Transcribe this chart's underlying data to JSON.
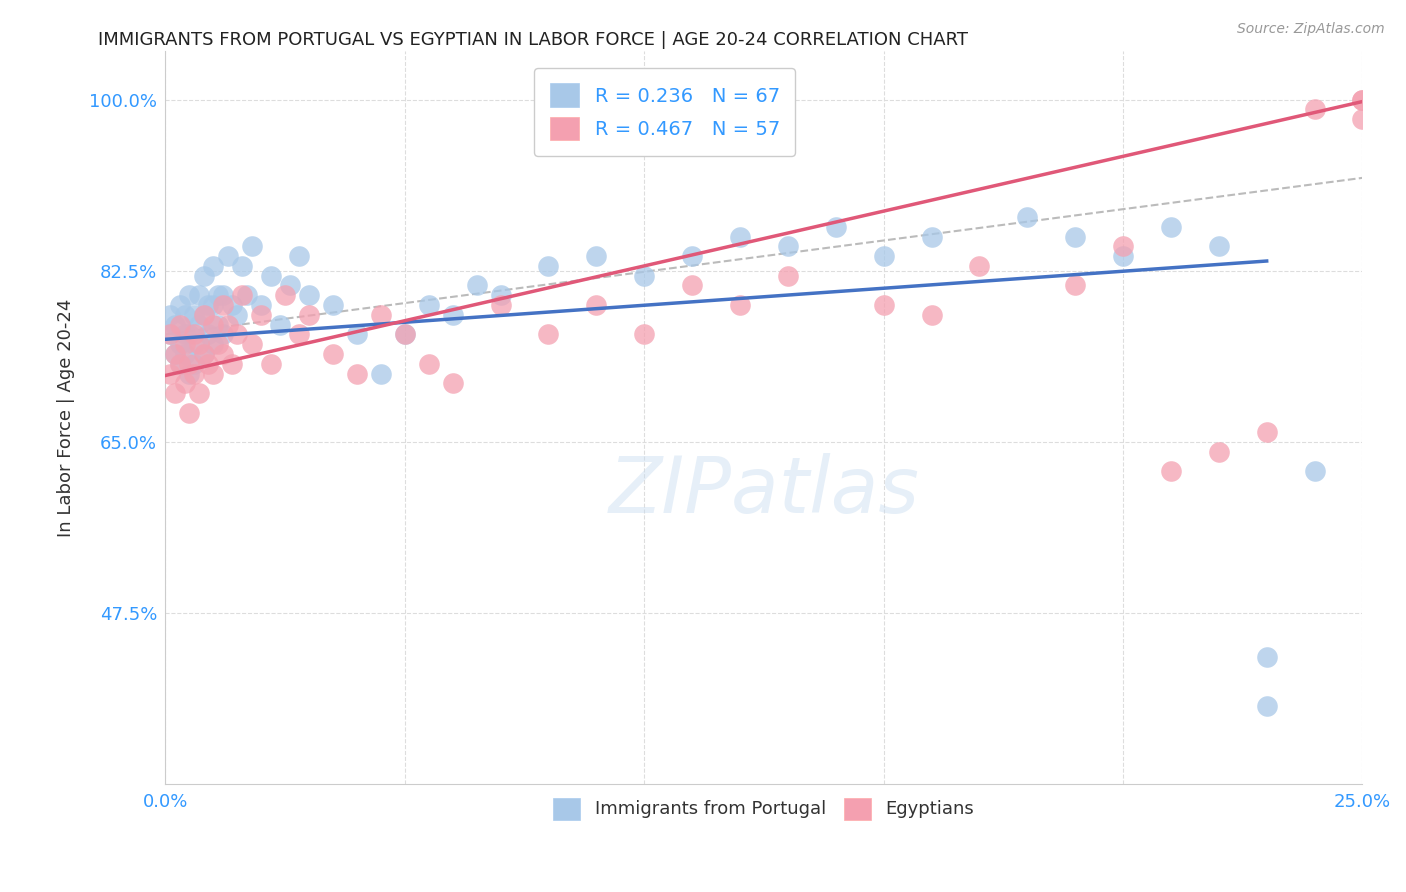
{
  "title": "IMMIGRANTS FROM PORTUGAL VS EGYPTIAN IN LABOR FORCE | AGE 20-24 CORRELATION CHART",
  "source": "Source: ZipAtlas.com",
  "ylabel": "In Labor Force | Age 20-24",
  "xlim": [
    0.0,
    0.25
  ],
  "ylim": [
    0.3,
    1.05
  ],
  "yticks": [
    0.475,
    0.65,
    0.825,
    1.0
  ],
  "yticklabels": [
    "47.5%",
    "65.0%",
    "82.5%",
    "100.0%"
  ],
  "xtick_show": [
    "0.0%",
    "25.0%"
  ],
  "legend_labels": [
    "Immigrants from Portugal",
    "Egyptians"
  ],
  "R_portugal": 0.236,
  "N_portugal": 67,
  "R_egypt": 0.467,
  "N_egypt": 57,
  "color_portugal": "#A8C8E8",
  "color_egypt": "#F4A0B0",
  "line_color_portugal": "#4472C4",
  "line_color_egypt": "#E05878",
  "dashed_line_color": "#BBBBBB",
  "background_color": "#FFFFFF",
  "grid_color": "#DDDDDD",
  "title_color": "#222222",
  "axis_label_color": "#333333",
  "tick_color": "#3399FF",
  "legend_text_color": "#3399FF",
  "portugal_x": [
    0.001,
    0.001,
    0.002,
    0.002,
    0.003,
    0.003,
    0.003,
    0.004,
    0.004,
    0.004,
    0.005,
    0.005,
    0.005,
    0.006,
    0.006,
    0.006,
    0.007,
    0.007,
    0.008,
    0.008,
    0.008,
    0.009,
    0.009,
    0.01,
    0.01,
    0.01,
    0.011,
    0.011,
    0.012,
    0.012,
    0.013,
    0.014,
    0.015,
    0.016,
    0.017,
    0.018,
    0.02,
    0.022,
    0.024,
    0.026,
    0.028,
    0.03,
    0.035,
    0.04,
    0.045,
    0.05,
    0.055,
    0.06,
    0.065,
    0.07,
    0.08,
    0.09,
    0.1,
    0.11,
    0.12,
    0.13,
    0.14,
    0.15,
    0.16,
    0.18,
    0.19,
    0.2,
    0.21,
    0.22,
    0.23,
    0.23,
    0.24
  ],
  "portugal_y": [
    0.76,
    0.78,
    0.74,
    0.77,
    0.75,
    0.79,
    0.73,
    0.76,
    0.74,
    0.78,
    0.72,
    0.76,
    0.8,
    0.75,
    0.78,
    0.73,
    0.77,
    0.8,
    0.74,
    0.78,
    0.82,
    0.76,
    0.79,
    0.75,
    0.79,
    0.83,
    0.77,
    0.8,
    0.76,
    0.8,
    0.84,
    0.79,
    0.78,
    0.83,
    0.8,
    0.85,
    0.79,
    0.82,
    0.77,
    0.81,
    0.84,
    0.8,
    0.79,
    0.76,
    0.72,
    0.76,
    0.79,
    0.78,
    0.81,
    0.8,
    0.83,
    0.84,
    0.82,
    0.84,
    0.86,
    0.85,
    0.87,
    0.84,
    0.86,
    0.88,
    0.86,
    0.84,
    0.87,
    0.85,
    0.38,
    0.43,
    0.62
  ],
  "egypt_x": [
    0.001,
    0.001,
    0.002,
    0.002,
    0.003,
    0.003,
    0.004,
    0.004,
    0.005,
    0.005,
    0.006,
    0.006,
    0.007,
    0.007,
    0.008,
    0.008,
    0.009,
    0.01,
    0.01,
    0.011,
    0.012,
    0.012,
    0.013,
    0.014,
    0.015,
    0.016,
    0.018,
    0.02,
    0.022,
    0.025,
    0.028,
    0.03,
    0.035,
    0.04,
    0.045,
    0.05,
    0.055,
    0.06,
    0.07,
    0.08,
    0.09,
    0.1,
    0.11,
    0.12,
    0.13,
    0.15,
    0.16,
    0.17,
    0.19,
    0.2,
    0.21,
    0.22,
    0.23,
    0.24,
    0.25,
    0.25,
    0.25
  ],
  "egypt_y": [
    0.72,
    0.76,
    0.7,
    0.74,
    0.73,
    0.77,
    0.71,
    0.75,
    0.73,
    0.68,
    0.76,
    0.72,
    0.75,
    0.7,
    0.74,
    0.78,
    0.73,
    0.72,
    0.77,
    0.75,
    0.74,
    0.79,
    0.77,
    0.73,
    0.76,
    0.8,
    0.75,
    0.78,
    0.73,
    0.8,
    0.76,
    0.78,
    0.74,
    0.72,
    0.78,
    0.76,
    0.73,
    0.71,
    0.79,
    0.76,
    0.79,
    0.76,
    0.81,
    0.79,
    0.82,
    0.79,
    0.78,
    0.83,
    0.81,
    0.85,
    0.62,
    0.64,
    0.66,
    0.99,
    0.98,
    1.0,
    1.0
  ],
  "portugal_line_x": [
    0.0,
    0.23
  ],
  "portugal_line_y": [
    0.755,
    0.835
  ],
  "egypt_line_x": [
    0.0,
    0.25
  ],
  "egypt_line_y": [
    0.718,
    0.998
  ],
  "dash_line_x": [
    0.0,
    0.25
  ],
  "dash_line_y": [
    0.76,
    0.92
  ]
}
